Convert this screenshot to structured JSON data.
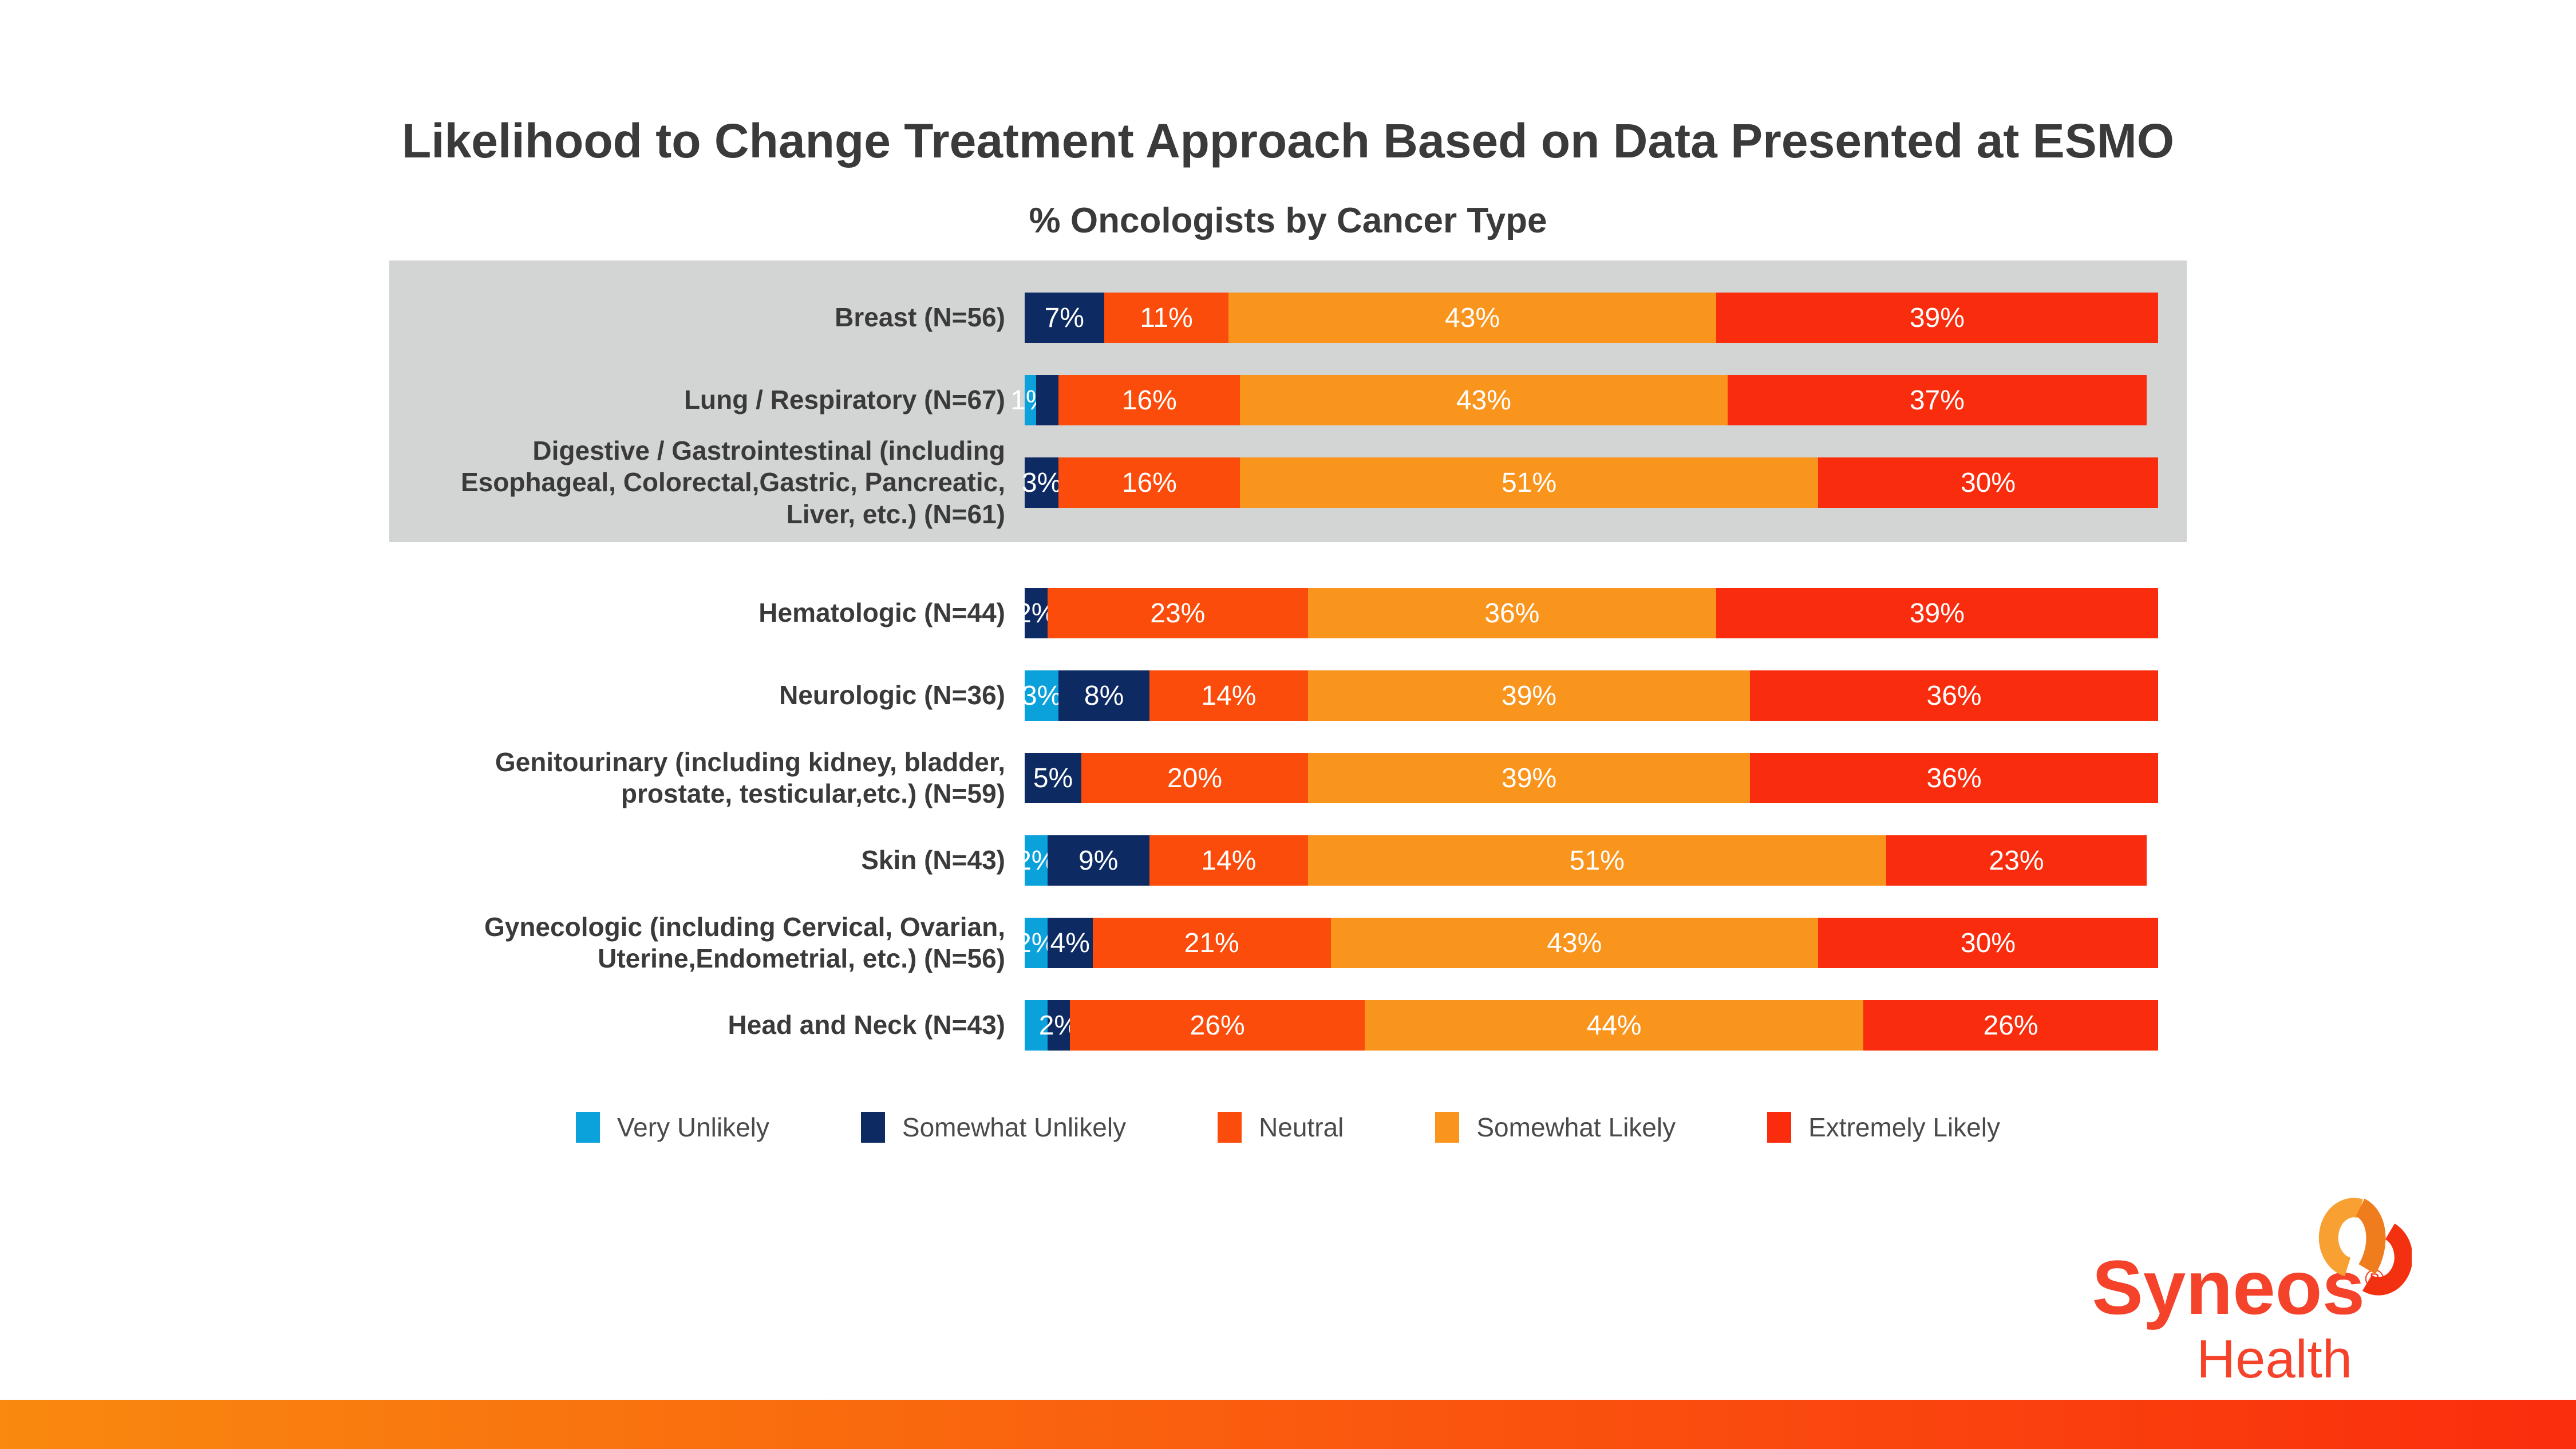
{
  "header": {
    "title": "Likelihood to Change Treatment Approach Based on Data Presented at ESMO",
    "subtitle": "% Oncologists by Cancer Type"
  },
  "chart_data": {
    "type": "bar",
    "stacked": true,
    "orientation": "horizontal",
    "xlim": [
      0,
      100
    ],
    "value_format": "percent",
    "grid": false,
    "axis_visible": false,
    "highlight_band_rows": [
      0,
      1,
      2
    ],
    "categories": [
      "Breast (N=56)",
      "Lung / Respiratory (N=67)",
      "Digestive / Gastrointestinal (including Esophageal, Colorectal,Gastric, Pancreatic, Liver, etc.) (N=61)",
      "Hematologic (N=44)",
      "Neurologic (N=36)",
      "Genitourinary (including kidney, bladder, prostate, testicular,etc.) (N=59)",
      "Skin (N=43)",
      "Gynecologic (including Cervical, Ovarian, Uterine,Endometrial, etc.) (N=56)",
      "Head and Neck (N=43)"
    ],
    "series": [
      {
        "name": "Very Unlikely",
        "key": "very-unlikely",
        "color": "#0BA2DB",
        "values": [
          0,
          1,
          0,
          0,
          3,
          0,
          2,
          2,
          2
        ],
        "display_labels": [
          "",
          "1%",
          "",
          "",
          "3%",
          "",
          "2%",
          "2%",
          ""
        ]
      },
      {
        "name": "Somewhat Unlikely",
        "key": "somewhat-unlikely",
        "color": "#0D2A63",
        "values": [
          7,
          2,
          3,
          2,
          8,
          5,
          9,
          4,
          2
        ],
        "display_labels": [
          "7%",
          "",
          "3%",
          "2%",
          "8%",
          "5%",
          "9%",
          "4%",
          "2%"
        ]
      },
      {
        "name": "Neutral",
        "key": "neutral",
        "color": "#FB4C0B",
        "values": [
          11,
          16,
          16,
          23,
          14,
          20,
          14,
          21,
          26
        ],
        "display_labels": [
          "11%",
          "16%",
          "16%",
          "23%",
          "14%",
          "20%",
          "14%",
          "21%",
          "26%"
        ]
      },
      {
        "name": "Somewhat Likely",
        "key": "somewhat-likely",
        "color": "#F9941C",
        "values": [
          43,
          43,
          51,
          36,
          39,
          39,
          51,
          43,
          44
        ],
        "display_labels": [
          "43%",
          "43%",
          "51%",
          "36%",
          "39%",
          "39%",
          "51%",
          "43%",
          "44%"
        ]
      },
      {
        "name": "Extremely Likely",
        "key": "extremely-likely",
        "color": "#F92D0E",
        "values": [
          39,
          37,
          30,
          39,
          36,
          36,
          23,
          30,
          26
        ],
        "display_labels": [
          "39%",
          "37%",
          "30%",
          "39%",
          "36%",
          "36%",
          "23%",
          "30%",
          "26%"
        ]
      }
    ]
  },
  "legend": {
    "items": [
      {
        "label": "Very Unlikely",
        "color": "#0BA2DB"
      },
      {
        "label": "Somewhat Unlikely",
        "color": "#0D2A63"
      },
      {
        "label": "Neutral",
        "color": "#FB4C0B"
      },
      {
        "label": "Somewhat Likely",
        "color": "#F9941C"
      },
      {
        "label": "Extremely Likely",
        "color": "#F92D0E"
      }
    ]
  },
  "logo": {
    "brand": "Syneos",
    "registered": "®",
    "sub": "Health"
  },
  "colors": {
    "band": "#D3D4D4",
    "title_text": "#3A3A3A",
    "footer_gradient_left": "#F9890F",
    "footer_gradient_right": "#FA2D0D",
    "logo_red": "#F5432B",
    "logo_mark_light_orange": "#F9A032",
    "logo_mark_dark_orange": "#EF7D1E",
    "logo_mark_red": "#F3300F"
  }
}
